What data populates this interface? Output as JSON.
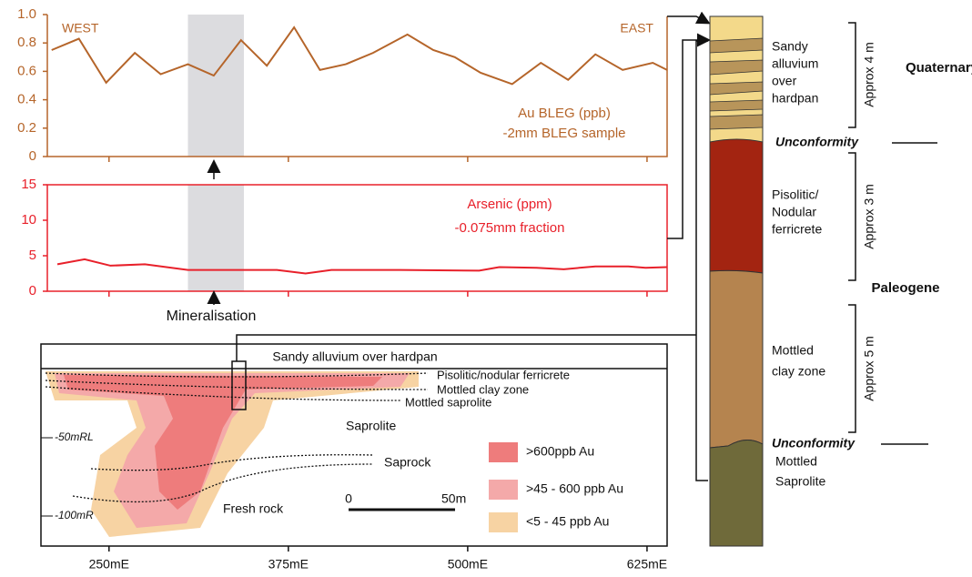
{
  "chart_data": [
    {
      "type": "line",
      "x": [
        210,
        229,
        248,
        268,
        286,
        305,
        323,
        342,
        360,
        379,
        397,
        415,
        434,
        458,
        476,
        491,
        509,
        531,
        551,
        570,
        589,
        608,
        629,
        639
      ],
      "values": [
        0.75,
        0.83,
        0.52,
        0.73,
        0.58,
        0.65,
        0.57,
        0.82,
        0.64,
        0.91,
        0.61,
        0.65,
        0.73,
        0.86,
        0.75,
        0.7,
        0.59,
        0.51,
        0.66,
        0.54,
        0.72,
        0.61,
        0.66,
        0.61
      ],
      "color": "#b5652a",
      "xlim": [
        207,
        639
      ],
      "ylim": [
        0,
        1
      ],
      "yticks": [
        0,
        0.2,
        0.4,
        0.6,
        0.8,
        {
          "value": 1,
          "label": "1.0"
        }
      ],
      "highlight": [
        305,
        344
      ],
      "west": "WEST",
      "east": "EAST",
      "labels": [
        "Au BLEG (ppb)",
        "-2mm BLEG sample"
      ]
    },
    {
      "type": "line",
      "x": [
        214,
        233,
        251,
        275,
        305,
        344,
        367,
        387,
        405,
        453,
        508,
        522,
        548,
        567,
        589,
        612,
        624,
        639
      ],
      "values": [
        3.8,
        4.5,
        3.6,
        3.8,
        3.0,
        3.0,
        3.0,
        2.5,
        3.0,
        3.0,
        2.9,
        3.4,
        3.3,
        3.1,
        3.5,
        3.5,
        3.3,
        3.4
      ],
      "color": "#e8202a",
      "xlim": [
        207,
        639
      ],
      "ylim": [
        0,
        15
      ],
      "yticks": [
        0,
        5,
        10,
        15
      ],
      "highlight": [
        305,
        344
      ],
      "labels": [
        "Arsenic (ppm)",
        "-0.075mm fraction"
      ],
      "annotation": "Mineralisation"
    }
  ],
  "section": {
    "title": "Sandy alluvium over hardpan",
    "zones": [
      "Pisolitic/nodular ferricrete",
      "Mottled clay zone",
      "Mottled saprolite",
      "Saprolite",
      "Saprock",
      "Fresh rock"
    ],
    "depths": [
      "-50mRL",
      "-100mR"
    ],
    "legend": [
      ">600ppb Au",
      ">45 - 600 ppb Au",
      "<5 - 45 ppb Au"
    ],
    "scale": [
      "0",
      "50m"
    ],
    "xticks": [
      {
        "value": 250,
        "label": "250mE"
      },
      {
        "value": 375,
        "label": "375mE"
      },
      {
        "value": 500,
        "label": "500mE"
      },
      {
        "value": 625,
        "label": "625mE"
      }
    ]
  },
  "column": {
    "units": [
      {
        "lines": [
          "Sandy",
          "alluvium",
          "over",
          "hardpan"
        ],
        "thickness": "Approx 4 m"
      },
      {
        "lines": [
          "Pisolitic/",
          "Nodular",
          "ferricrete"
        ],
        "thickness": "Approx 3 m"
      },
      {
        "lines": [
          "Mottled",
          "clay zone"
        ],
        "thickness": "Approx 5 m"
      },
      {
        "lines": [
          "Mottled",
          "Saprolite"
        ]
      }
    ],
    "periods": [
      "Quaternary",
      "Paleogene"
    ],
    "unconformities": [
      "Unconformity",
      "Unconformity"
    ]
  }
}
